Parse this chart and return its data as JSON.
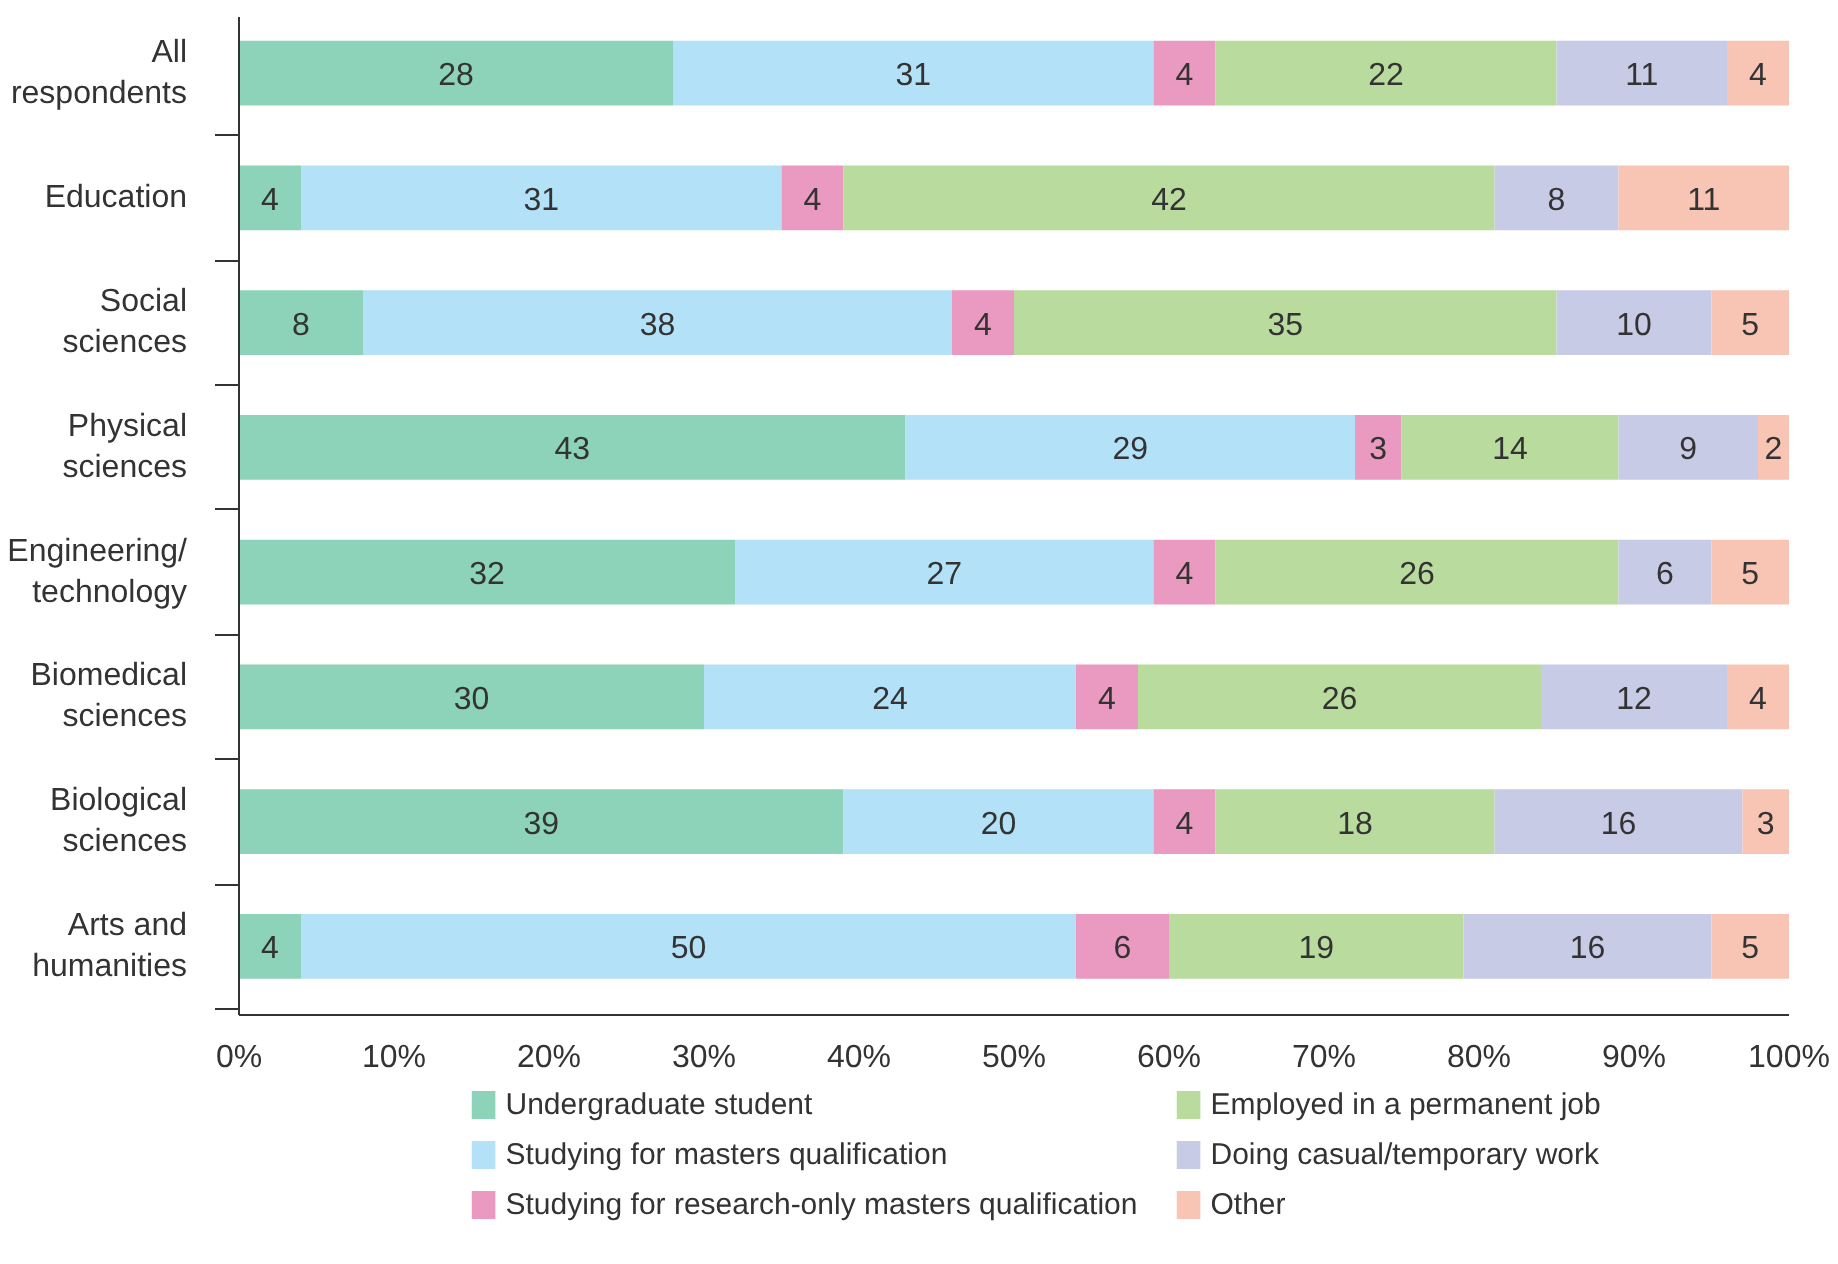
{
  "chart_data": {
    "type": "bar",
    "orientation": "horizontal",
    "stacked": true,
    "data_labels": true,
    "grid": false,
    "legend": "bottom",
    "categories": [
      "All\nrespondents",
      "Education",
      "Social\nsciences",
      "Physical\nsciences",
      "Engineering/\ntechnology",
      "Biomedical\nsciences",
      "Biological\nsciences",
      "Arts and\nhumanities"
    ],
    "xlim": [
      0,
      100
    ],
    "xticks": [
      {
        "value": 0,
        "label": "0%"
      },
      {
        "value": 10,
        "label": "10%"
      },
      {
        "value": 20,
        "label": "20%"
      },
      {
        "value": 30,
        "label": "30%"
      },
      {
        "value": 40,
        "label": "40%"
      },
      {
        "value": 50,
        "label": "50%"
      },
      {
        "value": 60,
        "label": "60%"
      },
      {
        "value": 70,
        "label": "70%"
      },
      {
        "value": 80,
        "label": "80%"
      },
      {
        "value": 90,
        "label": "90%"
      },
      {
        "value": 100,
        "label": "100%"
      }
    ],
    "series": [
      {
        "name": "Undergraduate student",
        "color": "#8dd3b9",
        "values": [
          28,
          4,
          8,
          43,
          32,
          30,
          39,
          4
        ]
      },
      {
        "name": "Studying for masters qualification",
        "color": "#b3e1f7",
        "values": [
          31,
          31,
          38,
          29,
          27,
          24,
          20,
          50
        ]
      },
      {
        "name": "Studying for research-only masters qualification",
        "color": "#ea9ac0",
        "values": [
          4,
          4,
          4,
          3,
          4,
          4,
          4,
          6
        ]
      },
      {
        "name": "Employed in a permanent job",
        "color": "#b9dc9e",
        "values": [
          22,
          42,
          35,
          14,
          26,
          26,
          18,
          19
        ]
      },
      {
        "name": "Doing casual/temporary work",
        "color": "#c7cbe6",
        "values": [
          11,
          8,
          10,
          9,
          6,
          12,
          16,
          16
        ]
      },
      {
        "name": "Other",
        "color": "#f8c5b4",
        "values": [
          4,
          11,
          5,
          2,
          5,
          4,
          3,
          5
        ]
      }
    ]
  }
}
